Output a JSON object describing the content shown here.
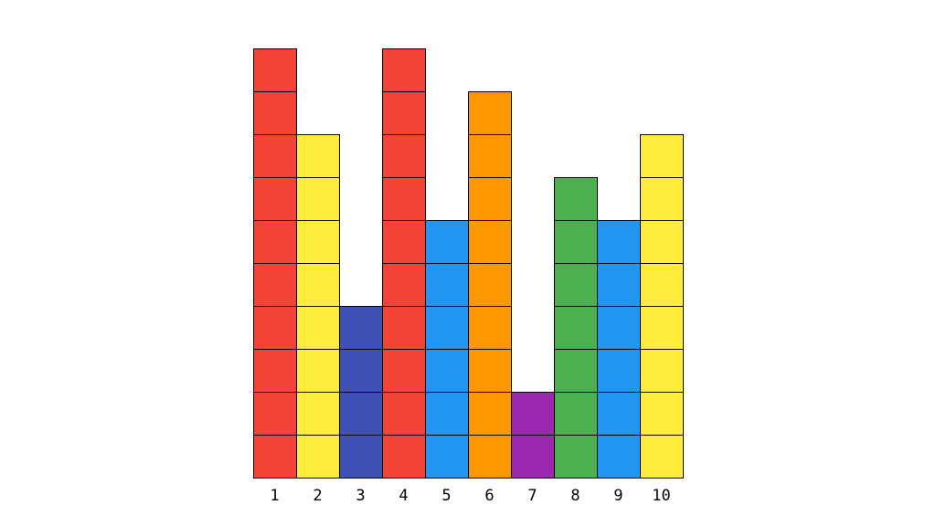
{
  "chart_data": {
    "type": "bar",
    "style": "stacked unit blocks",
    "categories": [
      "1",
      "2",
      "3",
      "4",
      "5",
      "6",
      "7",
      "8",
      "9",
      "10"
    ],
    "values": [
      10,
      8,
      4,
      10,
      6,
      9,
      2,
      7,
      6,
      8
    ],
    "colors": [
      "#f44336",
      "#ffeb3b",
      "#3f51b5",
      "#f44336",
      "#2196f3",
      "#ff9800",
      "#9c27b0",
      "#4caf50",
      "#2196f3",
      "#ffeb3b"
    ],
    "ylim": [
      0,
      10
    ],
    "grid": false,
    "legend": "none",
    "title": "",
    "xlabel": "",
    "ylabel": ""
  }
}
